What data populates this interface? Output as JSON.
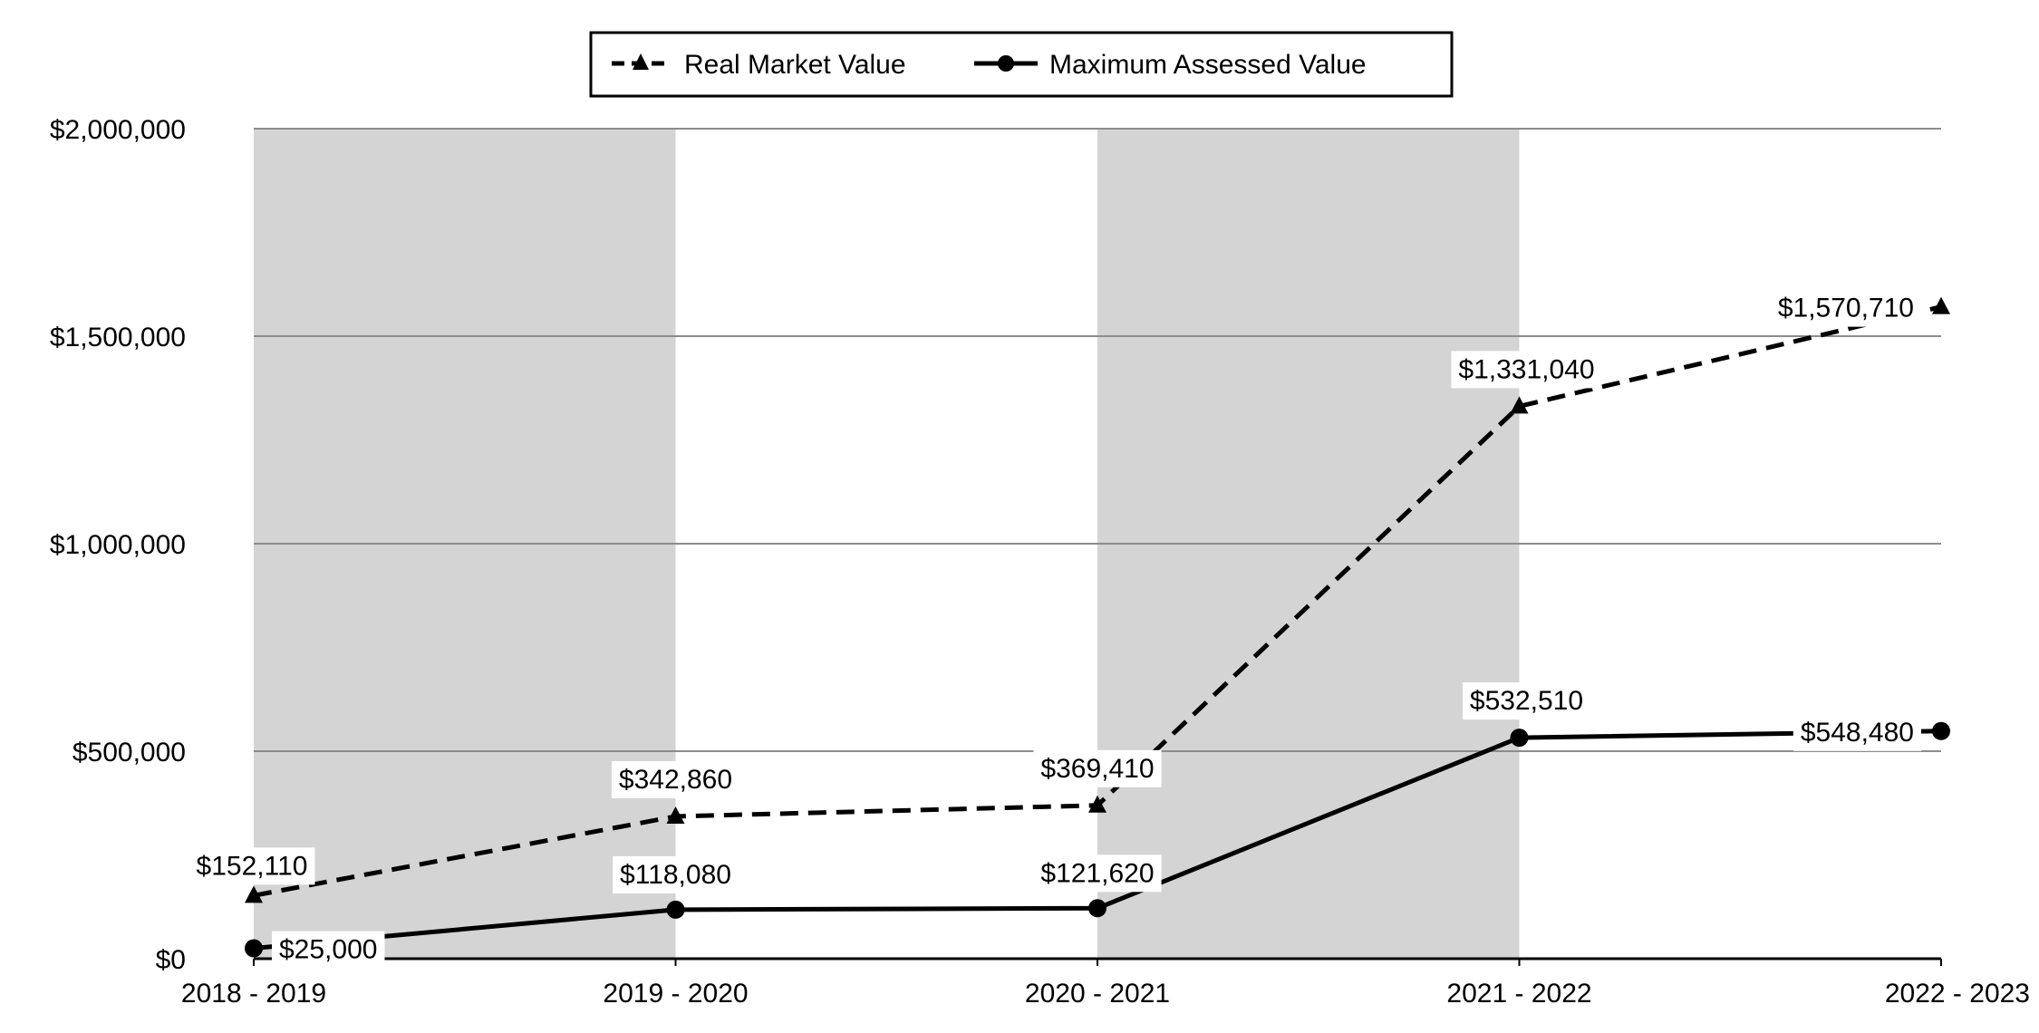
{
  "chart_data": {
    "type": "line",
    "categories": [
      "2018 - 2019",
      "2019 - 2020",
      "2020 - 2021",
      "2021 - 2022",
      "2022 - 2023"
    ],
    "series": [
      {
        "name": "Real Market Value",
        "values": [
          152110,
          342860,
          369410,
          1331040,
          1570710
        ],
        "labels": [
          "$152,110",
          "$342,860",
          "$369,410",
          "$1,331,040",
          "$1,570,710"
        ],
        "marker": "triangle",
        "line_style": "dashed",
        "color": "#000000"
      },
      {
        "name": "Maximum Assessed Value",
        "values": [
          25000,
          118080,
          121620,
          532510,
          548480
        ],
        "labels": [
          "$25,000",
          "$118,080",
          "$121,620",
          "$532,510",
          "$548,480"
        ],
        "marker": "circle",
        "line_style": "solid",
        "color": "#000000"
      }
    ],
    "ylim": [
      0,
      2000000
    ],
    "yticks": [
      0,
      500000,
      1000000,
      1500000,
      2000000
    ],
    "ytick_labels": [
      "$0",
      "$500,000",
      "$1,000,000",
      "$1,500,000",
      "$2,000,000"
    ],
    "grid": true,
    "legend_position": "top-center",
    "band_color": "#d4d4d4",
    "gridline_color": "#8c8c8c"
  }
}
